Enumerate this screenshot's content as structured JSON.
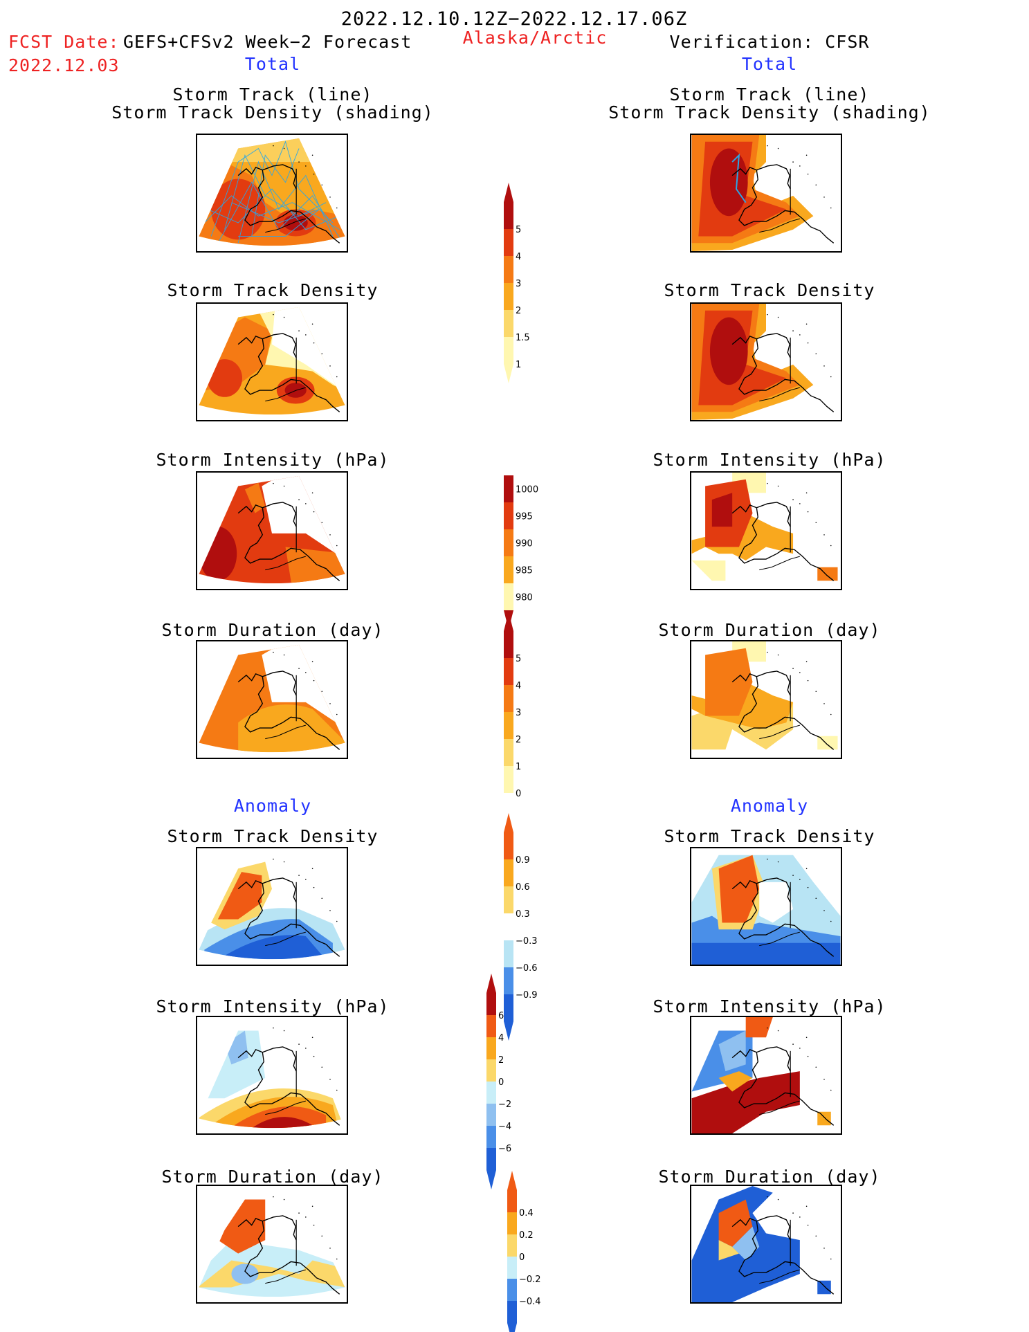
{
  "header": {
    "period": "2022.12.10.12Z−2022.12.17.06Z",
    "fcst_label": "FCST Date:",
    "fcst_date": "2022.12.03",
    "forecast_title": "GEFS+CFSv2 Week−2 Forecast",
    "region": "Alaska/Arctic",
    "verification": "Verification: CFSR"
  },
  "columns": {
    "left_total": "Total",
    "right_total": "Total",
    "left_anomaly": "Anomaly",
    "right_anomaly": "Anomaly"
  },
  "panels": {
    "track_title_1": "Storm Track (line)",
    "track_title_2": "Storm Track Density (shading)",
    "density_title": "Storm Track Density",
    "intensity_title": "Storm Intensity (hPa)",
    "duration_title": "Storm Duration (day)"
  },
  "colorbars": {
    "density_total": {
      "labels": [
        "5",
        "4",
        "3",
        "2",
        "1.5",
        "1"
      ],
      "colors": [
        "#fff7b0",
        "#fbd86a",
        "#f9a81e",
        "#f57a14",
        "#e23b10",
        "#b00e0e"
      ]
    },
    "intensity_total": {
      "labels": [
        "1000",
        "995",
        "990",
        "985",
        "980"
      ],
      "colors": [
        "#fff7b0",
        "#f9a81e",
        "#f57a14",
        "#e23b10",
        "#b00e0e"
      ]
    },
    "duration_total": {
      "labels": [
        "5",
        "4",
        "3",
        "2",
        "1",
        "0"
      ],
      "colors": [
        "#fff7b0",
        "#fbd86a",
        "#f9a81e",
        "#f57a14",
        "#e23b10",
        "#b00e0e"
      ]
    },
    "density_anom": {
      "labels": [
        "0.9",
        "0.6",
        "0.3",
        "−0.3",
        "−0.6",
        "−0.9"
      ],
      "colors": [
        "#1f5fd6",
        "#4a8fe8",
        "#b8e4f4",
        "#ffffff",
        "#fbd86a",
        "#f9a81e",
        "#f05a14"
      ]
    },
    "intensity_anom": {
      "labels": [
        "6",
        "4",
        "2",
        "0",
        "−2",
        "−4",
        "−6"
      ],
      "colors": [
        "#1f5fd6",
        "#4a8fe8",
        "#8fc0f0",
        "#c8eef8",
        "#fbd86a",
        "#f9a81e",
        "#f05a14",
        "#b00e0e"
      ]
    },
    "duration_anom": {
      "labels": [
        "0.4",
        "0.2",
        "0",
        "−0.2",
        "−0.4"
      ],
      "colors": [
        "#1f5fd6",
        "#4a8fe8",
        "#c8eef8",
        "#fbd86a",
        "#f9a81e",
        "#f05a14"
      ]
    }
  }
}
